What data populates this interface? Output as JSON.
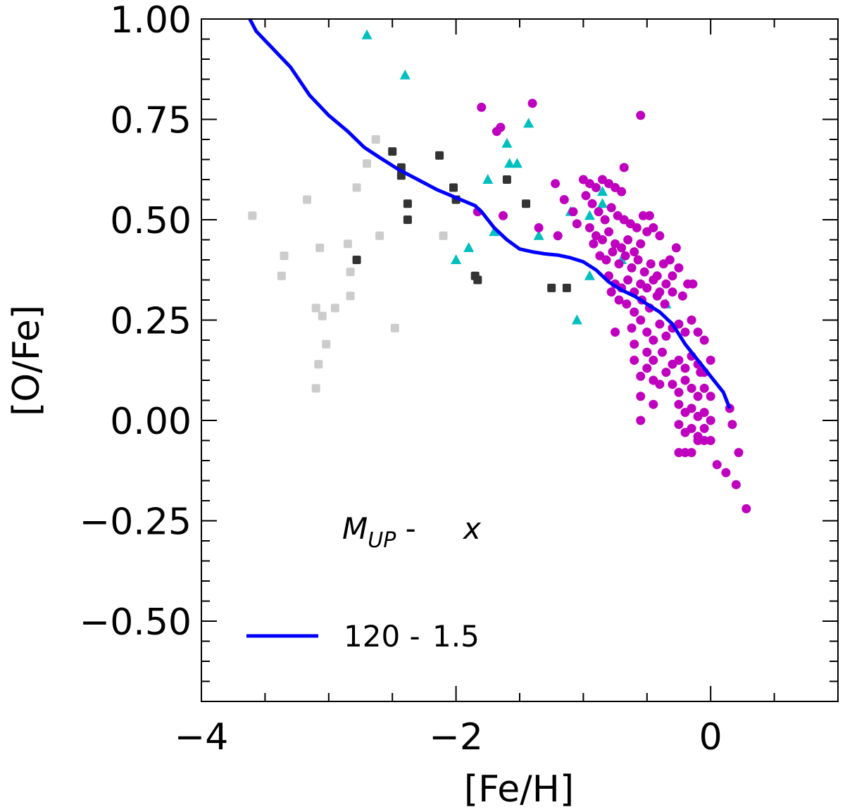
{
  "chart_data": {
    "type": "scatter",
    "xlabel": "[Fe/H]",
    "ylabel": "[O/Fe]",
    "xlim": [
      -4.0,
      1.0
    ],
    "ylim": [
      -0.7,
      1.0
    ],
    "x_major_ticks": [
      -4,
      -2,
      0
    ],
    "x_tick_labels": [
      "−4",
      "−2",
      "0"
    ],
    "y_major_ticks": [
      1.0,
      0.75,
      0.5,
      0.25,
      0.0,
      -0.25,
      -0.5
    ],
    "y_tick_labels": [
      "1.00",
      "0.75",
      "0.50",
      "0.25",
      "0.00",
      "−0.25",
      "−0.50"
    ],
    "legend": {
      "header_main": "M",
      "header_sub": "UP",
      "header_sep": " -",
      "header_x": "x",
      "entries": [
        {
          "color": "#0000ff",
          "label_left": "120 -",
          "label_right": "1.5"
        }
      ]
    },
    "model_line": {
      "name": "120 - 1.5",
      "color": "#0000ff",
      "x": [
        -3.62,
        -3.57,
        -3.45,
        -3.3,
        -3.15,
        -3.0,
        -2.85,
        -2.72,
        -2.6,
        -2.45,
        -2.3,
        -2.15,
        -2.0,
        -1.85,
        -1.8,
        -1.7,
        -1.6,
        -1.5,
        -1.4,
        -1.3,
        -1.2,
        -1.1,
        -1.0,
        -0.9,
        -0.8,
        -0.7,
        -0.6,
        -0.5,
        -0.4,
        -0.3,
        -0.2,
        -0.1,
        0.0,
        0.1,
        0.15
      ],
      "y": [
        1.0,
        0.97,
        0.93,
        0.88,
        0.81,
        0.76,
        0.72,
        0.68,
        0.655,
        0.625,
        0.6,
        0.575,
        0.555,
        0.535,
        0.52,
        0.48,
        0.45,
        0.427,
        0.42,
        0.415,
        0.412,
        0.405,
        0.395,
        0.375,
        0.345,
        0.325,
        0.31,
        0.29,
        0.27,
        0.24,
        0.19,
        0.15,
        0.11,
        0.07,
        0.03
      ]
    },
    "series": [
      {
        "name": "light-grey-squares",
        "marker": "square",
        "color": "#cccccc",
        "points": [
          [
            -3.6,
            0.51
          ],
          [
            -3.35,
            0.41
          ],
          [
            -3.37,
            0.36
          ],
          [
            -3.17,
            0.55
          ],
          [
            -3.07,
            0.43
          ],
          [
            -3.1,
            0.28
          ],
          [
            -3.05,
            0.26
          ],
          [
            -3.02,
            0.19
          ],
          [
            -3.08,
            0.14
          ],
          [
            -3.1,
            0.08
          ],
          [
            -2.95,
            0.28
          ],
          [
            -2.85,
            0.44
          ],
          [
            -2.83,
            0.37
          ],
          [
            -2.83,
            0.31
          ],
          [
            -2.78,
            0.58
          ],
          [
            -2.7,
            0.64
          ],
          [
            -2.63,
            0.7
          ],
          [
            -2.6,
            0.46
          ],
          [
            -2.48,
            0.23
          ],
          [
            -2.1,
            0.46
          ]
        ]
      },
      {
        "name": "dark-grey-squares",
        "marker": "square",
        "color": "#333333",
        "points": [
          [
            -2.78,
            0.4
          ],
          [
            -2.5,
            0.67
          ],
          [
            -2.43,
            0.63
          ],
          [
            -2.43,
            0.61
          ],
          [
            -2.38,
            0.54
          ],
          [
            -2.38,
            0.5
          ],
          [
            -2.13,
            0.66
          ],
          [
            -2.02,
            0.58
          ],
          [
            -2.0,
            0.55
          ],
          [
            -1.85,
            0.36
          ],
          [
            -1.83,
            0.35
          ],
          [
            -1.6,
            0.6
          ],
          [
            -1.45,
            0.54
          ],
          [
            -1.25,
            0.33
          ],
          [
            -1.13,
            0.33
          ]
        ]
      },
      {
        "name": "cyan-triangles",
        "marker": "triangle",
        "color": "#00bfbf",
        "points": [
          [
            -2.7,
            0.96
          ],
          [
            -2.4,
            0.86
          ],
          [
            -1.75,
            0.6
          ],
          [
            -1.6,
            0.69
          ],
          [
            -1.58,
            0.64
          ],
          [
            -1.52,
            0.64
          ],
          [
            -1.43,
            0.74
          ],
          [
            -1.35,
            0.46
          ],
          [
            -1.1,
            0.52
          ],
          [
            -1.05,
            0.25
          ],
          [
            -0.95,
            0.51
          ],
          [
            -0.95,
            0.36
          ],
          [
            -0.85,
            0.54
          ],
          [
            -0.85,
            0.57
          ],
          [
            -0.7,
            0.4
          ],
          [
            -0.35,
            0.29
          ],
          [
            -1.7,
            0.47
          ],
          [
            -1.9,
            0.43
          ],
          [
            -2.0,
            0.4
          ]
        ]
      },
      {
        "name": "magenta-circles",
        "marker": "circle",
        "color": "#bf00bf",
        "points": [
          [
            -1.8,
            0.78
          ],
          [
            -1.68,
            0.72
          ],
          [
            -1.65,
            0.73
          ],
          [
            -1.4,
            0.79
          ],
          [
            -1.63,
            0.51
          ],
          [
            -1.83,
            0.52
          ],
          [
            -1.35,
            0.48
          ],
          [
            -1.22,
            0.59
          ],
          [
            -1.2,
            0.46
          ],
          [
            -1.15,
            0.55
          ],
          [
            -1.08,
            0.52
          ],
          [
            -1.05,
            0.49
          ],
          [
            -1.0,
            0.6
          ],
          [
            -0.95,
            0.59
          ],
          [
            -0.9,
            0.58
          ],
          [
            -0.85,
            0.6
          ],
          [
            -0.8,
            0.59
          ],
          [
            -0.75,
            0.58
          ],
          [
            -0.7,
            0.57
          ],
          [
            -0.68,
            0.63
          ],
          [
            -0.55,
            0.76
          ],
          [
            -0.98,
            0.56
          ],
          [
            -0.93,
            0.54
          ],
          [
            -0.88,
            0.52
          ],
          [
            -0.83,
            0.5
          ],
          [
            -0.78,
            0.53
          ],
          [
            -0.73,
            0.51
          ],
          [
            -0.68,
            0.5
          ],
          [
            -0.63,
            0.49
          ],
          [
            -0.58,
            0.48
          ],
          [
            -0.53,
            0.51
          ],
          [
            -0.48,
            0.51
          ],
          [
            -0.95,
            0.48
          ],
          [
            -0.9,
            0.46
          ],
          [
            -0.85,
            0.45
          ],
          [
            -0.8,
            0.47
          ],
          [
            -0.75,
            0.44
          ],
          [
            -0.7,
            0.43
          ],
          [
            -0.65,
            0.45
          ],
          [
            -0.6,
            0.42
          ],
          [
            -0.55,
            0.44
          ],
          [
            -0.5,
            0.47
          ],
          [
            -0.45,
            0.48
          ],
          [
            -0.4,
            0.46
          ],
          [
            -0.92,
            0.44
          ],
          [
            -0.87,
            0.41
          ],
          [
            -0.82,
            0.4
          ],
          [
            -0.77,
            0.42
          ],
          [
            -0.72,
            0.39
          ],
          [
            -0.67,
            0.41
          ],
          [
            -0.62,
            0.38
          ],
          [
            -0.57,
            0.4
          ],
          [
            -0.52,
            0.37
          ],
          [
            -0.47,
            0.39
          ],
          [
            -0.42,
            0.36
          ],
          [
            -0.37,
            0.39
          ],
          [
            -0.32,
            0.4
          ],
          [
            -0.27,
            0.43
          ],
          [
            -0.8,
            0.36
          ],
          [
            -0.75,
            0.34
          ],
          [
            -0.7,
            0.33
          ],
          [
            -0.65,
            0.35
          ],
          [
            -0.6,
            0.32
          ],
          [
            -0.55,
            0.34
          ],
          [
            -0.5,
            0.33
          ],
          [
            -0.45,
            0.35
          ],
          [
            -0.4,
            0.32
          ],
          [
            -0.35,
            0.34
          ],
          [
            -0.3,
            0.36
          ],
          [
            -0.25,
            0.38
          ],
          [
            -0.78,
            0.32
          ],
          [
            -0.72,
            0.3
          ],
          [
            -0.66,
            0.29
          ],
          [
            -0.6,
            0.27
          ],
          [
            -0.54,
            0.3
          ],
          [
            -0.48,
            0.28
          ],
          [
            -0.42,
            0.31
          ],
          [
            -0.36,
            0.29
          ],
          [
            -0.3,
            0.32
          ],
          [
            -0.22,
            0.31
          ],
          [
            -0.18,
            0.34
          ],
          [
            -0.14,
            0.34
          ],
          [
            -0.75,
            0.22
          ],
          [
            -0.62,
            0.23
          ],
          [
            -0.55,
            0.25
          ],
          [
            -0.5,
            0.22
          ],
          [
            -0.45,
            0.2
          ],
          [
            -0.4,
            0.24
          ],
          [
            -0.35,
            0.21
          ],
          [
            -0.3,
            0.23
          ],
          [
            -0.25,
            0.24
          ],
          [
            -0.2,
            0.22
          ],
          [
            -0.15,
            0.25
          ],
          [
            -0.1,
            0.22
          ],
          [
            -0.05,
            0.2
          ],
          [
            -0.6,
            0.19
          ],
          [
            -0.5,
            0.17
          ],
          [
            -0.45,
            0.15
          ],
          [
            -0.38,
            0.17
          ],
          [
            -0.3,
            0.14
          ],
          [
            -0.25,
            0.15
          ],
          [
            -0.2,
            0.13
          ],
          [
            -0.15,
            0.16
          ],
          [
            -0.1,
            0.14
          ],
          [
            -0.05,
            0.12
          ],
          [
            0.0,
            0.15
          ],
          [
            -0.6,
            0.15
          ],
          [
            -0.55,
            0.11
          ],
          [
            -0.5,
            0.13
          ],
          [
            -0.45,
            0.1
          ],
          [
            -0.4,
            0.09
          ],
          [
            -0.35,
            0.12
          ],
          [
            -0.3,
            0.09
          ],
          [
            -0.25,
            0.07
          ],
          [
            -0.2,
            0.1
          ],
          [
            -0.15,
            0.08
          ],
          [
            -0.1,
            0.06
          ],
          [
            -0.05,
            0.08
          ],
          [
            0.0,
            0.06
          ],
          [
            -0.55,
            0.06
          ],
          [
            -0.45,
            0.04
          ],
          [
            -0.25,
            0.04
          ],
          [
            -0.2,
            0.02
          ],
          [
            -0.15,
            0.03
          ],
          [
            -0.1,
            0.01
          ],
          [
            -0.05,
            0.02
          ],
          [
            0.0,
            0.0
          ],
          [
            -0.55,
            -0.0
          ],
          [
            -0.25,
            -0.01
          ],
          [
            -0.2,
            -0.03
          ],
          [
            -0.15,
            -0.02
          ],
          [
            -0.1,
            -0.04
          ],
          [
            -0.05,
            -0.02
          ],
          [
            -0.1,
            -0.05
          ],
          [
            -0.05,
            -0.05
          ],
          [
            0.0,
            -0.05
          ],
          [
            -0.25,
            -0.08
          ],
          [
            -0.2,
            -0.08
          ],
          [
            -0.15,
            -0.08
          ],
          [
            0.15,
            0.03
          ],
          [
            0.17,
            -0.01
          ],
          [
            0.22,
            -0.08
          ],
          [
            0.05,
            -0.11
          ],
          [
            0.12,
            -0.13
          ],
          [
            0.2,
            -0.16
          ],
          [
            0.28,
            -0.22
          ],
          [
            -0.08,
            0.12
          ]
        ]
      }
    ]
  }
}
